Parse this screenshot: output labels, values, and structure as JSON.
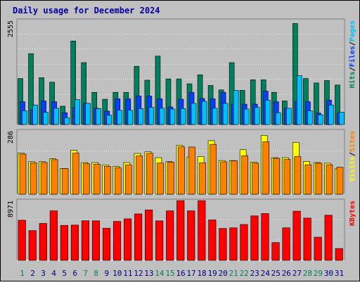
{
  "colors": {
    "frame_bg": "#c0c0c0",
    "plot_bg": "#c0c0c0",
    "grid": "#ffffff",
    "title": "#0000a0",
    "hits": "#00805c",
    "files": "#0040ff",
    "pages": "#00c0ff",
    "visits": "#ffff00",
    "sites": "#ff8000",
    "kbytes": "#ff0000",
    "weekday_label": "#000080",
    "weekend_label": "#00805c"
  },
  "chart_data": {
    "type": "bar",
    "title": "Daily usage for December 2024",
    "categories": [
      "1",
      "2",
      "3",
      "4",
      "5",
      "6",
      "7",
      "8",
      "9",
      "10",
      "11",
      "12",
      "13",
      "14",
      "15",
      "16",
      "17",
      "18",
      "19",
      "20",
      "21",
      "22",
      "23",
      "24",
      "25",
      "26",
      "27",
      "28",
      "29",
      "30",
      "31"
    ],
    "weekend_days": [
      "1",
      "7",
      "8",
      "14",
      "15",
      "21",
      "22",
      "28",
      "29"
    ],
    "panels": [
      {
        "id": "hits_files_pages",
        "ymax_label": "2555",
        "ymax": 2555,
        "ylabel": [
          "Pages",
          "Files",
          "Hits"
        ],
        "series": [
          {
            "name": "Hits",
            "values": [
              1130,
              1740,
              1150,
              1040,
              450,
              2050,
              1520,
              790,
              620,
              790,
              790,
              1430,
              1090,
              1680,
              1120,
              1120,
              1000,
              1220,
              960,
              850,
              1520,
              840,
              1100,
              1100,
              790,
              580,
              2480,
              1130,
              1020,
              1080,
              970
            ]
          },
          {
            "name": "Files",
            "values": [
              560,
              360,
              580,
              560,
              290,
              420,
              520,
              400,
              330,
              630,
              630,
              700,
              700,
              630,
              430,
              620,
              790,
              640,
              630,
              790,
              500,
              500,
              500,
              820,
              560,
              400,
              570,
              560,
              280,
              600,
              280
            ]
          },
          {
            "name": "Pages",
            "values": [
              340,
              480,
              300,
              400,
              170,
              610,
              520,
              390,
              230,
              350,
              350,
              390,
              420,
              400,
              380,
              390,
              520,
              570,
              400,
              520,
              840,
              380,
              420,
              600,
              290,
              400,
              1200,
              340,
              240,
              480,
              300
            ]
          }
        ]
      },
      {
        "id": "visits_sites",
        "ymax_label": "286",
        "ymax": 286,
        "ylabel": [
          "Sites",
          "Visits"
        ],
        "series": [
          {
            "name": "Visits",
            "values": [
              185,
              147,
              147,
              160,
              116,
              198,
              143,
              143,
              132,
              125,
              143,
              184,
              192,
              165,
              147,
              221,
              168,
              170,
              242,
              152,
              152,
              201,
              145,
              266,
              165,
              165,
              234,
              148,
              143,
              140,
              115
            ]
          },
          {
            "name": "Sites",
            "values": [
              181,
              142,
              143,
              156,
              116,
              186,
              138,
              136,
              126,
              120,
              133,
              173,
              185,
              141,
              145,
              214,
              213,
              142,
              225,
              146,
              151,
              174,
              140,
              237,
              162,
              157,
              170,
              133,
              140,
              133,
              122
            ]
          }
        ]
      },
      {
        "id": "kbytes",
        "ymax_label": "8971",
        "ymax": 8971,
        "ylabel": [
          "KBytes"
        ],
        "series": [
          {
            "name": "KBytes",
            "values": [
              6030,
              4460,
              5540,
              7430,
              5250,
              5290,
              5940,
              5930,
              4830,
              5840,
              6230,
              6970,
              7560,
              5930,
              7430,
              8960,
              7430,
              8960,
              6070,
              4790,
              4880,
              5380,
              6670,
              7020,
              2670,
              4880,
              7380,
              6340,
              3480,
              6770,
              1780
            ]
          }
        ]
      }
    ]
  }
}
